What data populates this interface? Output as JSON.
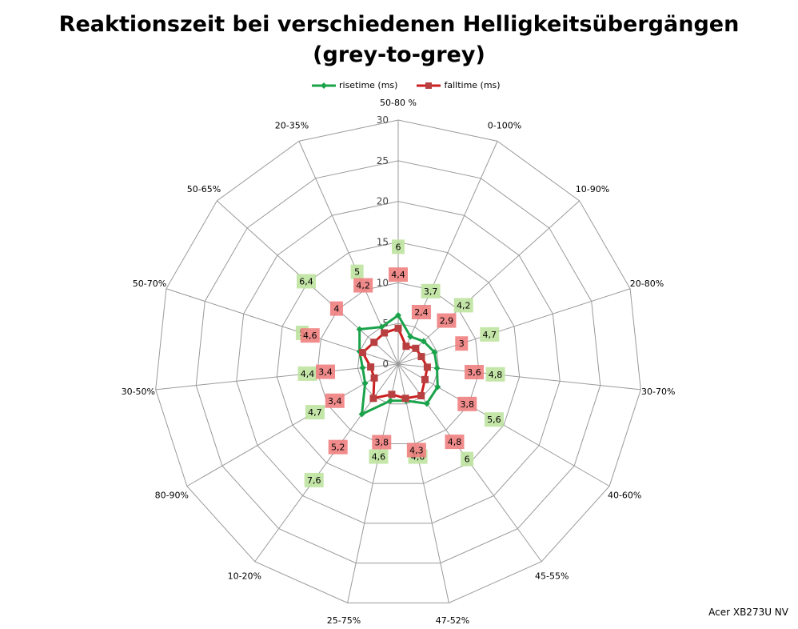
{
  "chart_data": {
    "type": "radar",
    "title": "Reaktionszeit bei verschiedenen Helligkeitsübergängen",
    "subtitle": "(grey-to-grey)",
    "categories": [
      "50-80 %",
      "0-100%",
      "10-90%",
      "20-80%",
      "30-70%",
      "40-60%",
      "45-55%",
      "47-52%",
      "25-75%",
      "10-20%",
      "80-90%",
      "30-50%",
      "50-70%",
      "50-65%",
      "20-35%"
    ],
    "radial_ticks": [
      "0",
      "5",
      "10",
      "15",
      "20",
      "25",
      "30"
    ],
    "rmax": 30,
    "series": [
      {
        "name": "risetime (ms)",
        "color": "#1aa34a",
        "label_bg": "#bfe3a0",
        "marker": "diamond",
        "values": [
          6.0,
          3.7,
          4.2,
          4.7,
          4.8,
          5.6,
          6.0,
          4.6,
          4.6,
          7.6,
          4.7,
          4.4,
          5.0,
          6.4,
          5.0
        ],
        "labels": [
          "6",
          "3,7",
          "4,2",
          "4,7",
          "4,8",
          "5,6",
          "6",
          "4,6",
          "4,6",
          "7,6",
          "4,7",
          "4,4",
          "5",
          "6,4",
          "5"
        ]
      },
      {
        "name": "falltime (ms)",
        "color": "#cc1f1f",
        "label_bg": "#f08080",
        "marker": "square",
        "values": [
          4.4,
          2.4,
          2.9,
          3.0,
          3.6,
          3.8,
          4.8,
          4.3,
          3.8,
          5.2,
          3.4,
          3.4,
          4.6,
          4.0,
          4.2
        ],
        "labels": [
          "4,4",
          "2,4",
          "2,9",
          "3",
          "3,6",
          "3,8",
          "4,8",
          "4,3",
          "3,8",
          "5,2",
          "3,4",
          "3,4",
          "4,6",
          "4",
          "4,2"
        ]
      }
    ]
  },
  "footer": "Acer XB273U NV"
}
